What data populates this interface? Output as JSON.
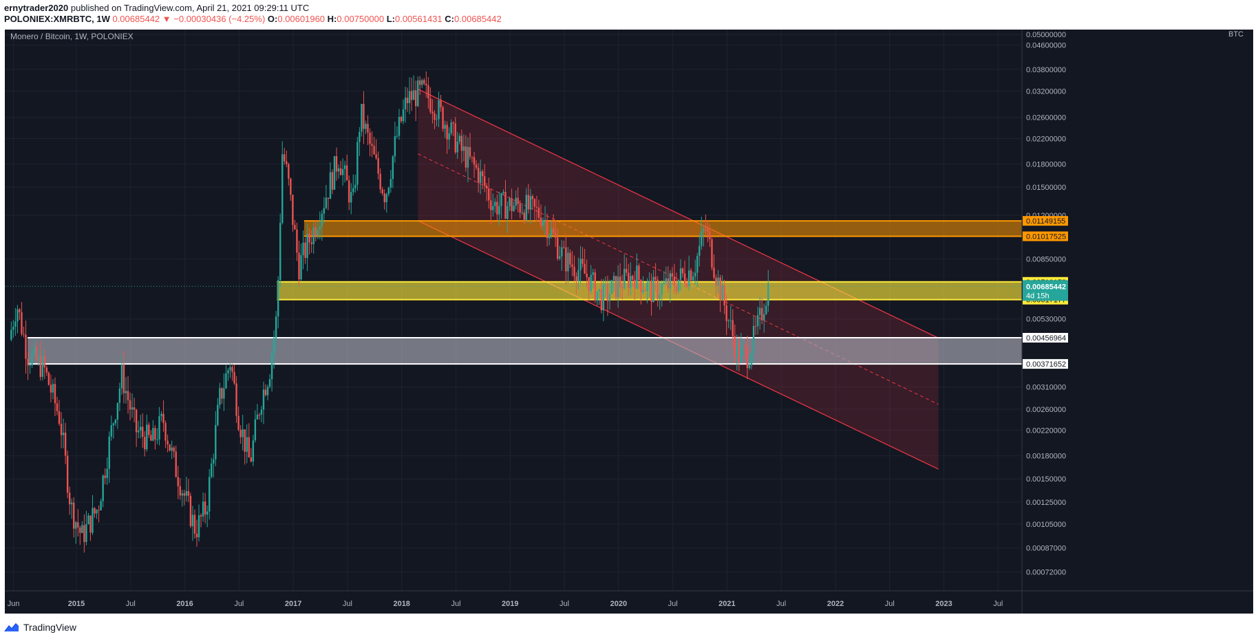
{
  "header": {
    "author": "ernytrader2020",
    "published": "published on TradingView.com, April 21, 2021 09:29:11 UTC",
    "symbol": "POLONIEX:XMRBTC, 1W",
    "last": "0.00685442",
    "change": "−0.00030436 (−4.25%)",
    "o_label": "O:",
    "o": "0.00601960",
    "h_label": "H:",
    "h": "0.00750000",
    "l_label": "L:",
    "l": "0.00561431",
    "c_label": "C:",
    "c": "0.00685442"
  },
  "footer": {
    "brand": "TradingView",
    "icon": "tradingview-logo-icon"
  },
  "chart_data": {
    "type": "candlestick",
    "title": "Monero / Bitcoin, 1W, POLONIEX",
    "unit": "BTC",
    "y_scale": "log",
    "ylim": [
      0.00062,
      0.052
    ],
    "grid": true,
    "colors": {
      "up": "#26a69a",
      "down": "#ef5350",
      "background": "#131722",
      "resistance_zone": "#ff9800",
      "current_zone": "#ffeb3b",
      "support_zone": "#b2b5be",
      "channel": "#f23645"
    },
    "y_ticks": [
      "0.05000000",
      "0.04600000",
      "0.03800000",
      "0.03200000",
      "0.02600000",
      "0.02200000",
      "0.01800000",
      "0.01500000",
      "0.01200000",
      "0.00850000",
      "0.00530000",
      "0.00310000",
      "0.00260000",
      "0.00220000",
      "0.00180000",
      "0.00150000",
      "0.00125000",
      "0.00105000",
      "0.00087000",
      "0.00072000"
    ],
    "y_tick_values": [
      0.05,
      0.046,
      0.038,
      0.032,
      0.026,
      0.022,
      0.018,
      0.015,
      0.012,
      0.0085,
      0.0053,
      0.0031,
      0.0026,
      0.0022,
      0.0018,
      0.0015,
      0.00125,
      0.00105,
      0.00087,
      0.00072
    ],
    "x_ticks": [
      {
        "label": "Jun",
        "t": 2014.42,
        "bold": false
      },
      {
        "label": "2015",
        "t": 2015.0,
        "bold": true
      },
      {
        "label": "Jul",
        "t": 2015.5,
        "bold": false
      },
      {
        "label": "2016",
        "t": 2016.0,
        "bold": true
      },
      {
        "label": "Jul",
        "t": 2016.5,
        "bold": false
      },
      {
        "label": "2017",
        "t": 2017.0,
        "bold": true
      },
      {
        "label": "Jul",
        "t": 2017.5,
        "bold": false
      },
      {
        "label": "2018",
        "t": 2018.0,
        "bold": true
      },
      {
        "label": "Jul",
        "t": 2018.5,
        "bold": false
      },
      {
        "label": "2019",
        "t": 2019.0,
        "bold": true
      },
      {
        "label": "Jul",
        "t": 2019.5,
        "bold": false
      },
      {
        "label": "2020",
        "t": 2020.0,
        "bold": true
      },
      {
        "label": "Jul",
        "t": 2020.5,
        "bold": false
      },
      {
        "label": "2021",
        "t": 2021.0,
        "bold": true
      },
      {
        "label": "Jul",
        "t": 2021.5,
        "bold": false
      },
      {
        "label": "2022",
        "t": 2022.0,
        "bold": true
      },
      {
        "label": "Jul",
        "t": 2022.5,
        "bold": false
      },
      {
        "label": "2023",
        "t": 2023.0,
        "bold": true
      },
      {
        "label": "Jul",
        "t": 2023.5,
        "bold": false
      }
    ],
    "price_path": [
      [
        2014.38,
        0.0045
      ],
      [
        2014.45,
        0.006
      ],
      [
        2014.55,
        0.004
      ],
      [
        2014.7,
        0.0036
      ],
      [
        2014.85,
        0.0024
      ],
      [
        2014.95,
        0.0012
      ],
      [
        2015.05,
        0.00095
      ],
      [
        2015.2,
        0.0012
      ],
      [
        2015.35,
        0.0025
      ],
      [
        2015.42,
        0.0034
      ],
      [
        2015.55,
        0.0022
      ],
      [
        2015.7,
        0.002
      ],
      [
        2015.8,
        0.0024
      ],
      [
        2015.9,
        0.0017
      ],
      [
        2016.0,
        0.0013
      ],
      [
        2016.1,
        0.001
      ],
      [
        2016.2,
        0.0012
      ],
      [
        2016.32,
        0.0028
      ],
      [
        2016.42,
        0.0038
      ],
      [
        2016.5,
        0.0024
      ],
      [
        2016.6,
        0.0017
      ],
      [
        2016.7,
        0.0028
      ],
      [
        2016.78,
        0.0035
      ],
      [
        2016.85,
        0.0055
      ],
      [
        2016.9,
        0.02
      ],
      [
        2016.95,
        0.016
      ],
      [
        2017.05,
        0.008
      ],
      [
        2017.2,
        0.011
      ],
      [
        2017.3,
        0.014
      ],
      [
        2017.42,
        0.019
      ],
      [
        2017.55,
        0.013
      ],
      [
        2017.62,
        0.027
      ],
      [
        2017.72,
        0.02
      ],
      [
        2017.85,
        0.014
      ],
      [
        2017.95,
        0.022
      ],
      [
        2018.05,
        0.03
      ],
      [
        2018.2,
        0.032
      ],
      [
        2018.35,
        0.027
      ],
      [
        2018.55,
        0.02
      ],
      [
        2018.7,
        0.017
      ],
      [
        2018.85,
        0.013
      ],
      [
        2019.1,
        0.013
      ],
      [
        2019.3,
        0.012
      ],
      [
        2019.5,
        0.0085
      ],
      [
        2019.7,
        0.0075
      ],
      [
        2019.85,
        0.0062
      ],
      [
        2020.0,
        0.007
      ],
      [
        2020.15,
        0.0075
      ],
      [
        2020.3,
        0.0066
      ],
      [
        2020.5,
        0.007
      ],
      [
        2020.7,
        0.008
      ],
      [
        2020.8,
        0.011
      ],
      [
        2020.9,
        0.0075
      ],
      [
        2021.0,
        0.0055
      ],
      [
        2021.1,
        0.004
      ],
      [
        2021.2,
        0.004
      ],
      [
        2021.3,
        0.0052
      ],
      [
        2021.38,
        0.00685
      ]
    ],
    "zones": [
      {
        "name": "resistance",
        "low": 0.01017525,
        "high": 0.01149155,
        "x_start": 2017.1,
        "x_end": "right",
        "labels": [
          "0.01149155",
          "0.01017525"
        ]
      },
      {
        "name": "current",
        "low": 0.00617177,
        "high": 0.00710173,
        "x_start": 2016.85,
        "x_end": "right",
        "labels": [
          "0.00710173",
          "0.00617177"
        ]
      },
      {
        "name": "support",
        "low": 0.00371652,
        "high": 0.00456964,
        "x_start": 2014.55,
        "x_end": "right",
        "labels": [
          "0.00456964",
          "0.00371652"
        ]
      }
    ],
    "current_price": {
      "value": "0.00685442",
      "countdown": "4d 15h"
    },
    "channel": {
      "x_start": 2018.15,
      "x_end": 2022.95,
      "upper": [
        [
          2018.15,
          0.0325
        ],
        [
          2022.95,
          0.00456
        ]
      ],
      "mid": [
        [
          2018.15,
          0.0195
        ],
        [
          2022.95,
          0.0027
        ]
      ],
      "lower": [
        [
          2018.15,
          0.0115
        ],
        [
          2022.95,
          0.00162
        ]
      ]
    }
  }
}
